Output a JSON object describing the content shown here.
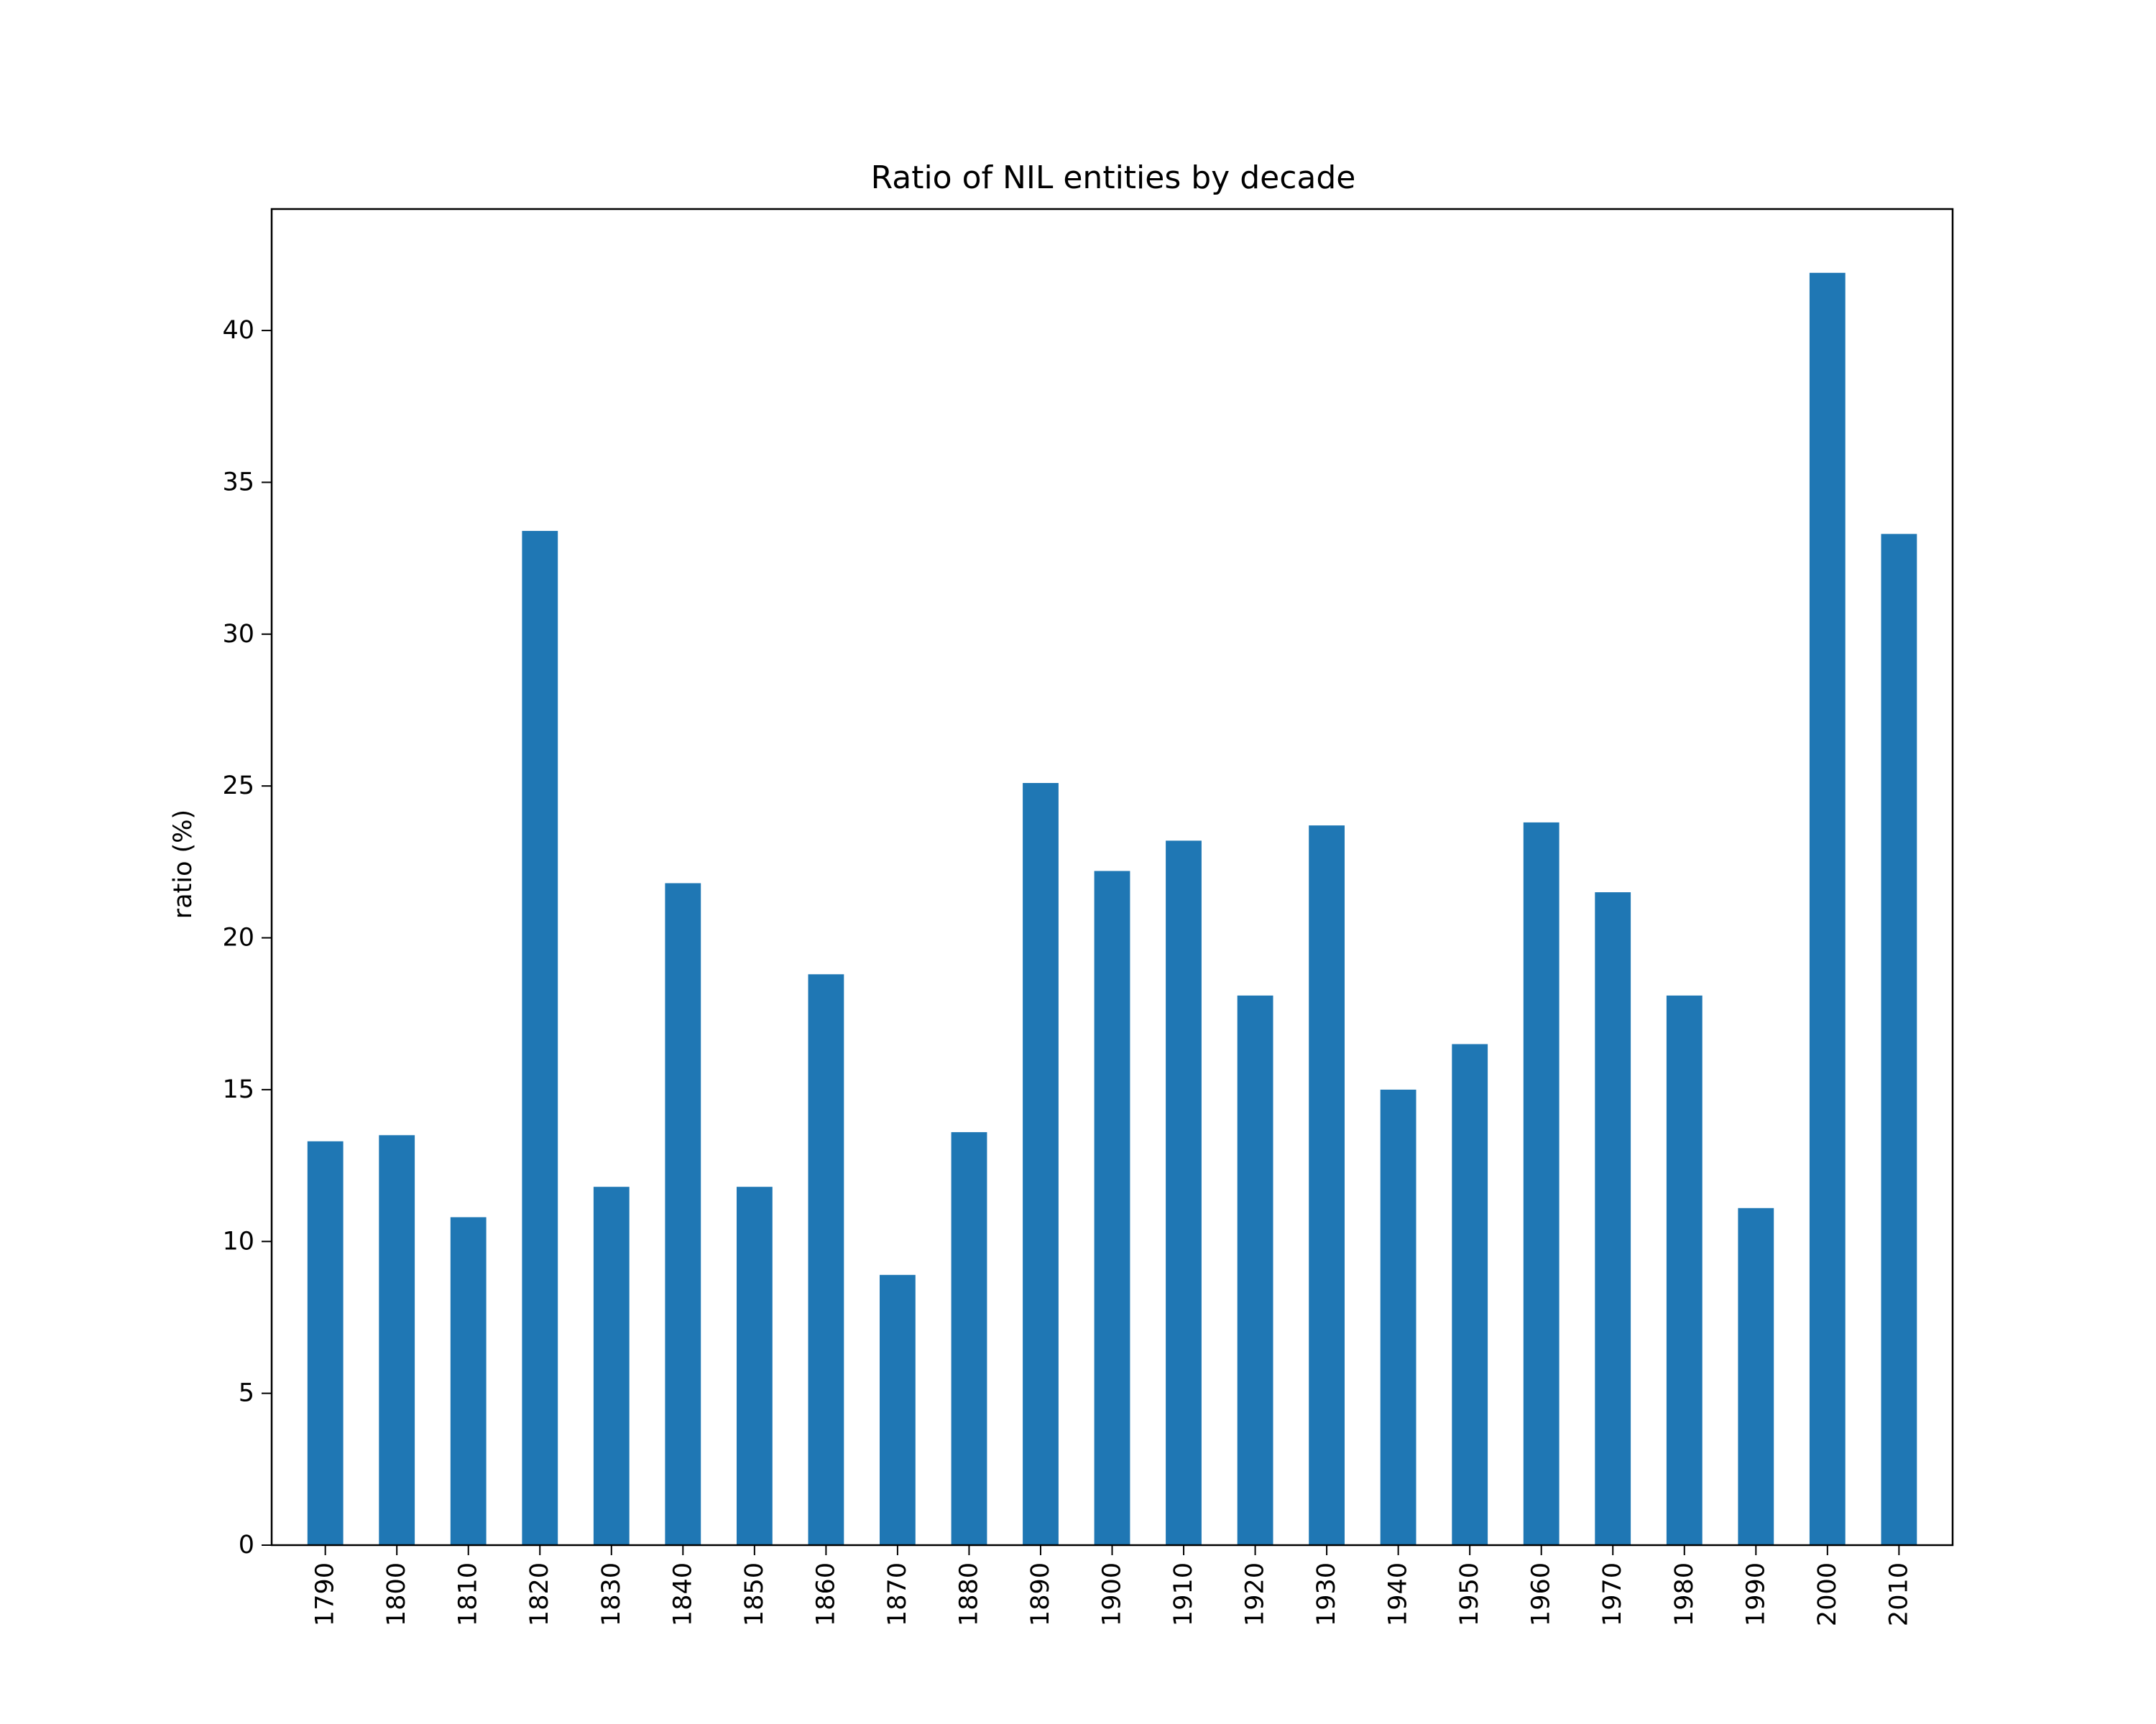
{
  "chart_data": {
    "type": "bar",
    "title": "Ratio of NIL entities by decade",
    "xlabel": "",
    "ylabel": "ratio (%)",
    "categories": [
      "1790",
      "1800",
      "1810",
      "1820",
      "1830",
      "1840",
      "1850",
      "1860",
      "1870",
      "1880",
      "1890",
      "1900",
      "1910",
      "1920",
      "1930",
      "1940",
      "1950",
      "1960",
      "1970",
      "1980",
      "1990",
      "2000",
      "2010"
    ],
    "values": [
      13.3,
      13.5,
      10.8,
      33.4,
      11.8,
      21.8,
      11.8,
      18.8,
      8.9,
      13.6,
      25.1,
      22.2,
      23.2,
      18.1,
      23.7,
      15.0,
      16.5,
      23.8,
      21.5,
      18.1,
      11.1,
      41.9,
      33.3
    ],
    "yticks": [
      "0",
      "5",
      "10",
      "15",
      "20",
      "25",
      "30",
      "35",
      "40"
    ],
    "ylim": [
      0,
      44
    ],
    "bar_color": "#1f77b4",
    "grid": false,
    "legend": "none"
  }
}
